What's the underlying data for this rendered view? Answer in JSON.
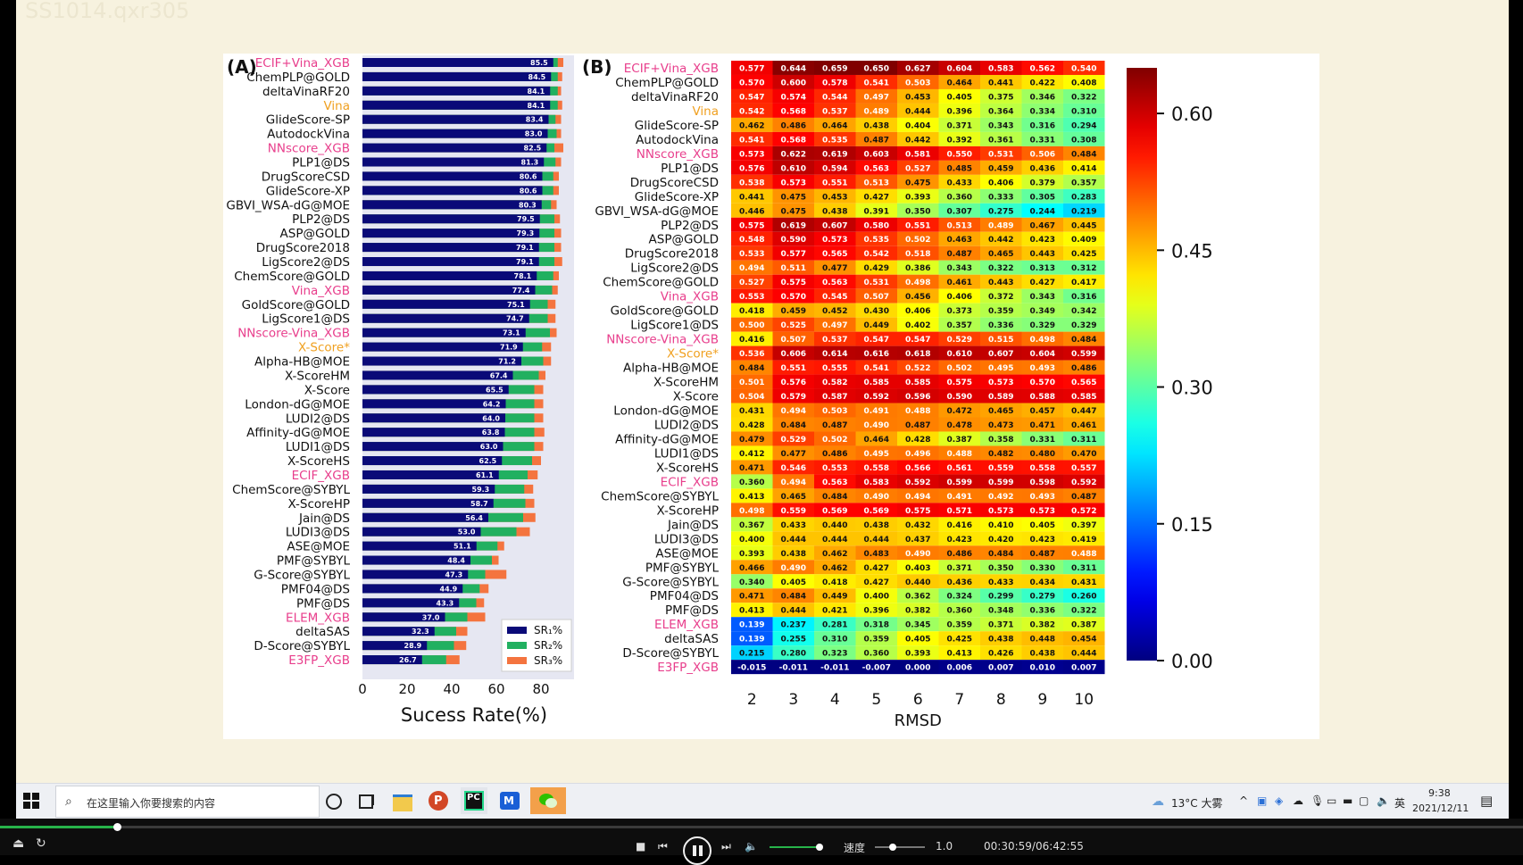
{
  "watermark": "SS1014.qxr305",
  "colors": {
    "bar_sr1": "#0a0a78",
    "bar_sr2": "#21b060",
    "bar_sr3": "#f4743f",
    "label_black": "#111111",
    "label_pink": "#e83e8c",
    "label_orange": "#f0a020",
    "panel_bg": "#e6e7f2"
  },
  "chart_data": [
    {
      "type": "bar",
      "panel_label": "(A)",
      "xlabel": "Sucess Rate(%)",
      "xlim": [
        0,
        95
      ],
      "xticks": [
        0,
        20,
        40,
        60,
        80
      ],
      "legend": [
        "SR₁%",
        "SR₂%",
        "SR₃%"
      ],
      "legend_position": "bottom-right",
      "categories": [
        "ECIF+Vina_XGB",
        "ChemPLP@GOLD",
        "deltaVinaRF20",
        "Vina",
        "GlideScore-SP",
        "AutodockVina",
        "NNscore_XGB",
        "PLP1@DS",
        "DrugScoreCSD",
        "GlideScore-XP",
        "GBVI_WSA-dG@MOE",
        "PLP2@DS",
        "ASP@GOLD",
        "DrugScore2018",
        "LigScore2@DS",
        "ChemScore@GOLD",
        "Vina_XGB",
        "GoldScore@GOLD",
        "LigScore1@DS",
        "NNscore-Vina_XGB",
        "X-Score*",
        "Alpha-HB@MOE",
        "X-ScoreHM",
        "X-Score",
        "London-dG@MOE",
        "LUDI2@DS",
        "Affinity-dG@MOE",
        "LUDI1@DS",
        "X-ScoreHS",
        "ECIF_XGB",
        "ChemScore@SYBYL",
        "X-ScoreHP",
        "Jain@DS",
        "LUDI3@DS",
        "ASE@MOE",
        "PMF@SYBYL",
        "G-Score@SYBYL",
        "PMF04@DS",
        "PMF@DS",
        "ELEM_XGB",
        "deltaSAS",
        "D-Score@SYBYL",
        "E3FP_XGB"
      ],
      "label_colors": [
        "pink",
        "black",
        "black",
        "orange",
        "black",
        "black",
        "pink",
        "black",
        "black",
        "black",
        "black",
        "black",
        "black",
        "black",
        "black",
        "black",
        "pink",
        "black",
        "black",
        "pink",
        "orange",
        "black",
        "black",
        "black",
        "black",
        "black",
        "black",
        "black",
        "black",
        "pink",
        "black",
        "black",
        "black",
        "black",
        "black",
        "black",
        "black",
        "black",
        "black",
        "pink",
        "black",
        "black",
        "pink"
      ],
      "series": [
        {
          "name": "SR₁%",
          "values": [
            85.5,
            84.5,
            84.1,
            84.1,
            83.4,
            83.0,
            82.5,
            81.3,
            80.6,
            80.6,
            80.3,
            79.5,
            79.3,
            79.1,
            79.1,
            78.1,
            77.4,
            75.1,
            74.7,
            73.1,
            71.9,
            71.2,
            67.4,
            65.5,
            64.2,
            64.0,
            63.8,
            63.0,
            62.5,
            61.1,
            59.3,
            58.7,
            56.4,
            53.0,
            51.1,
            48.4,
            47.3,
            44.9,
            43.3,
            37.0,
            32.3,
            28.9,
            26.7
          ]
        },
        {
          "name": "SR₂%",
          "values": [
            87.5,
            87.5,
            87.5,
            87.5,
            86.5,
            87.0,
            86.0,
            86.5,
            85.5,
            85.5,
            84.5,
            86.0,
            86.0,
            86.0,
            86.0,
            85.5,
            85.0,
            83.0,
            83.0,
            84.0,
            80.5,
            81.0,
            79.0,
            77.0,
            77.0,
            77.0,
            77.0,
            77.0,
            76.0,
            74.0,
            72.5,
            73.0,
            72.0,
            69.0,
            60.5,
            58.0,
            55.0,
            52.5,
            51.0,
            47.0,
            42.0,
            41.0,
            37.5
          ]
        },
        {
          "name": "SR₃%",
          "values": [
            90.0,
            89.5,
            89.0,
            89.5,
            89.0,
            89.0,
            90.0,
            89.0,
            88.0,
            88.0,
            87.0,
            88.5,
            89.0,
            89.0,
            89.5,
            88.0,
            87.5,
            86.5,
            86.5,
            87.0,
            84.5,
            84.5,
            82.0,
            81.0,
            81.0,
            81.0,
            81.5,
            81.0,
            80.0,
            78.5,
            76.5,
            77.0,
            77.5,
            75.0,
            63.5,
            61.0,
            64.5,
            56.5,
            54.5,
            55.0,
            47.0,
            46.5,
            43.5
          ]
        }
      ]
    },
    {
      "type": "heatmap",
      "panel_label": "(B)",
      "xlabel": "RMSD",
      "x": [
        2,
        3,
        4,
        5,
        6,
        7,
        8,
        9,
        10
      ],
      "colorbar_range": [
        0.0,
        0.65
      ],
      "colorbar_ticks": [
        "0.00",
        "0.15",
        "0.30",
        "0.45",
        "0.60"
      ],
      "colormap": "jet",
      "rows": [
        {
          "name": "ECIF+Vina_XGB",
          "color": "pink",
          "values": [
            "0.577",
            "0.644",
            "0.659",
            "0.650",
            "0.627",
            "0.604",
            "0.583",
            "0.562",
            "0.540"
          ]
        },
        {
          "name": "ChemPLP@GOLD",
          "color": "black",
          "values": [
            "0.570",
            "0.600",
            "0.578",
            "0.541",
            "0.503",
            "0.464",
            "0.441",
            "0.422",
            "0.408"
          ]
        },
        {
          "name": "deltaVinaRF20",
          "color": "black",
          "values": [
            "0.547",
            "0.574",
            "0.544",
            "0.497",
            "0.453",
            "0.405",
            "0.375",
            "0.346",
            "0.322"
          ]
        },
        {
          "name": "Vina",
          "color": "orange",
          "values": [
            "0.542",
            "0.568",
            "0.537",
            "0.489",
            "0.444",
            "0.396",
            "0.364",
            "0.334",
            "0.310"
          ]
        },
        {
          "name": "GlideScore-SP",
          "color": "black",
          "values": [
            "0.462",
            "0.486",
            "0.464",
            "0.438",
            "0.404",
            "0.371",
            "0.343",
            "0.316",
            "0.294"
          ]
        },
        {
          "name": "AutodockVina",
          "color": "black",
          "values": [
            "0.541",
            "0.568",
            "0.535",
            "0.487",
            "0.442",
            "0.392",
            "0.361",
            "0.331",
            "0.308"
          ]
        },
        {
          "name": "NNscore_XGB",
          "color": "pink",
          "values": [
            "0.573",
            "0.622",
            "0.619",
            "0.603",
            "0.581",
            "0.550",
            "0.531",
            "0.506",
            "0.484"
          ]
        },
        {
          "name": "PLP1@DS",
          "color": "black",
          "values": [
            "0.576",
            "0.610",
            "0.594",
            "0.563",
            "0.527",
            "0.485",
            "0.459",
            "0.436",
            "0.414"
          ]
        },
        {
          "name": "DrugScoreCSD",
          "color": "black",
          "values": [
            "0.538",
            "0.573",
            "0.551",
            "0.513",
            "0.475",
            "0.433",
            "0.406",
            "0.379",
            "0.357"
          ]
        },
        {
          "name": "GlideScore-XP",
          "color": "black",
          "values": [
            "0.441",
            "0.475",
            "0.453",
            "0.427",
            "0.393",
            "0.360",
            "0.333",
            "0.305",
            "0.283"
          ]
        },
        {
          "name": "GBVI_WSA-dG@MOE",
          "color": "black",
          "values": [
            "0.446",
            "0.475",
            "0.438",
            "0.391",
            "0.350",
            "0.307",
            "0.275",
            "0.244",
            "0.219"
          ]
        },
        {
          "name": "PLP2@DS",
          "color": "black",
          "values": [
            "0.575",
            "0.619",
            "0.607",
            "0.580",
            "0.551",
            "0.513",
            "0.489",
            "0.467",
            "0.445"
          ]
        },
        {
          "name": "ASP@GOLD",
          "color": "black",
          "values": [
            "0.548",
            "0.590",
            "0.573",
            "0.535",
            "0.502",
            "0.463",
            "0.442",
            "0.423",
            "0.409"
          ]
        },
        {
          "name": "DrugScore2018",
          "color": "black",
          "values": [
            "0.533",
            "0.577",
            "0.565",
            "0.542",
            "0.518",
            "0.487",
            "0.465",
            "0.443",
            "0.425"
          ]
        },
        {
          "name": "LigScore2@DS",
          "color": "black",
          "values": [
            "0.494",
            "0.511",
            "0.477",
            "0.429",
            "0.386",
            "0.343",
            "0.322",
            "0.313",
            "0.312"
          ]
        },
        {
          "name": "ChemScore@GOLD",
          "color": "black",
          "values": [
            "0.527",
            "0.575",
            "0.563",
            "0.531",
            "0.498",
            "0.461",
            "0.443",
            "0.427",
            "0.417"
          ]
        },
        {
          "name": "Vina_XGB",
          "color": "pink",
          "values": [
            "0.553",
            "0.570",
            "0.545",
            "0.507",
            "0.456",
            "0.406",
            "0.372",
            "0.343",
            "0.316"
          ]
        },
        {
          "name": "GoldScore@GOLD",
          "color": "black",
          "values": [
            "0.418",
            "0.459",
            "0.452",
            "0.430",
            "0.406",
            "0.373",
            "0.359",
            "0.349",
            "0.342"
          ]
        },
        {
          "name": "LigScore1@DS",
          "color": "black",
          "values": [
            "0.500",
            "0.525",
            "0.497",
            "0.449",
            "0.402",
            "0.357",
            "0.336",
            "0.329",
            "0.329"
          ]
        },
        {
          "name": "NNscore-Vina_XGB",
          "color": "pink",
          "values": [
            "0.416",
            "0.507",
            "0.537",
            "0.547",
            "0.547",
            "0.529",
            "0.515",
            "0.498",
            "0.484"
          ]
        },
        {
          "name": "X-Score*",
          "color": "orange",
          "values": [
            "0.536",
            "0.606",
            "0.614",
            "0.616",
            "0.618",
            "0.610",
            "0.607",
            "0.604",
            "0.599"
          ]
        },
        {
          "name": "Alpha-HB@MOE",
          "color": "black",
          "values": [
            "0.484",
            "0.551",
            "0.555",
            "0.541",
            "0.522",
            "0.502",
            "0.495",
            "0.493",
            "0.486"
          ]
        },
        {
          "name": "X-ScoreHM",
          "color": "black",
          "values": [
            "0.501",
            "0.576",
            "0.582",
            "0.585",
            "0.585",
            "0.575",
            "0.573",
            "0.570",
            "0.565"
          ]
        },
        {
          "name": "X-Score",
          "color": "black",
          "values": [
            "0.504",
            "0.579",
            "0.587",
            "0.592",
            "0.596",
            "0.590",
            "0.589",
            "0.588",
            "0.585"
          ]
        },
        {
          "name": "London-dG@MOE",
          "color": "black",
          "values": [
            "0.431",
            "0.494",
            "0.503",
            "0.491",
            "0.488",
            "0.472",
            "0.465",
            "0.457",
            "0.447"
          ]
        },
        {
          "name": "LUDI2@DS",
          "color": "black",
          "values": [
            "0.428",
            "0.484",
            "0.487",
            "0.490",
            "0.487",
            "0.478",
            "0.473",
            "0.471",
            "0.461"
          ]
        },
        {
          "name": "Affinity-dG@MOE",
          "color": "black",
          "values": [
            "0.479",
            "0.529",
            "0.502",
            "0.464",
            "0.428",
            "0.387",
            "0.358",
            "0.331",
            "0.311"
          ]
        },
        {
          "name": "LUDI1@DS",
          "color": "black",
          "values": [
            "0.412",
            "0.477",
            "0.486",
            "0.495",
            "0.496",
            "0.488",
            "0.482",
            "0.480",
            "0.470"
          ]
        },
        {
          "name": "X-ScoreHS",
          "color": "black",
          "values": [
            "0.471",
            "0.546",
            "0.553",
            "0.558",
            "0.566",
            "0.561",
            "0.559",
            "0.558",
            "0.557"
          ]
        },
        {
          "name": "ECIF_XGB",
          "color": "pink",
          "values": [
            "0.360",
            "0.494",
            "0.563",
            "0.583",
            "0.592",
            "0.599",
            "0.599",
            "0.598",
            "0.592"
          ]
        },
        {
          "name": "ChemScore@SYBYL",
          "color": "black",
          "values": [
            "0.413",
            "0.465",
            "0.484",
            "0.490",
            "0.494",
            "0.491",
            "0.492",
            "0.493",
            "0.487"
          ]
        },
        {
          "name": "X-ScoreHP",
          "color": "black",
          "values": [
            "0.498",
            "0.559",
            "0.569",
            "0.569",
            "0.575",
            "0.571",
            "0.573",
            "0.573",
            "0.572"
          ]
        },
        {
          "name": "Jain@DS",
          "color": "black",
          "values": [
            "0.367",
            "0.433",
            "0.440",
            "0.438",
            "0.432",
            "0.416",
            "0.410",
            "0.405",
            "0.397"
          ]
        },
        {
          "name": "LUDI3@DS",
          "color": "black",
          "values": [
            "0.400",
            "0.444",
            "0.444",
            "0.444",
            "0.437",
            "0.423",
            "0.420",
            "0.423",
            "0.419"
          ]
        },
        {
          "name": "ASE@MOE",
          "color": "black",
          "values": [
            "0.393",
            "0.438",
            "0.462",
            "0.483",
            "0.490",
            "0.486",
            "0.484",
            "0.487",
            "0.488"
          ]
        },
        {
          "name": "PMF@SYBYL",
          "color": "black",
          "values": [
            "0.466",
            "0.490",
            "0.462",
            "0.427",
            "0.403",
            "0.371",
            "0.350",
            "0.330",
            "0.311"
          ]
        },
        {
          "name": "G-Score@SYBYL",
          "color": "black",
          "values": [
            "0.340",
            "0.405",
            "0.418",
            "0.427",
            "0.440",
            "0.436",
            "0.433",
            "0.434",
            "0.431"
          ]
        },
        {
          "name": "PMF04@DS",
          "color": "black",
          "values": [
            "0.471",
            "0.484",
            "0.449",
            "0.400",
            "0.362",
            "0.324",
            "0.299",
            "0.279",
            "0.260"
          ]
        },
        {
          "name": "PMF@DS",
          "color": "black",
          "values": [
            "0.413",
            "0.444",
            "0.421",
            "0.396",
            "0.382",
            "0.360",
            "0.348",
            "0.336",
            "0.322"
          ]
        },
        {
          "name": "ELEM_XGB",
          "color": "pink",
          "values": [
            "0.139",
            "0.237",
            "0.281",
            "0.318",
            "0.345",
            "0.359",
            "0.371",
            "0.382",
            "0.387"
          ]
        },
        {
          "name": "deltaSAS",
          "color": "black",
          "values": [
            "0.139",
            "0.255",
            "0.310",
            "0.359",
            "0.405",
            "0.425",
            "0.438",
            "0.448",
            "0.454"
          ]
        },
        {
          "name": "D-Score@SYBYL",
          "color": "black",
          "values": [
            "0.215",
            "0.280",
            "0.323",
            "0.360",
            "0.393",
            "0.413",
            "0.426",
            "0.438",
            "0.444"
          ]
        },
        {
          "name": "E3FP_XGB",
          "color": "pink",
          "values": [
            "-0.015",
            "-0.011",
            "-0.011",
            "-0.007",
            "0.000",
            "0.006",
            "0.007",
            "0.010",
            "0.007"
          ]
        }
      ]
    }
  ],
  "taskbar": {
    "search_placeholder": "在这里输入你要搜索的内容",
    "weather": "13°C 大雾",
    "ime": "英",
    "time": "9:38",
    "date": "2021/12/11",
    "apps": [
      "cortana-icon",
      "task-view-icon",
      "file-explorer-icon",
      "powerpoint-icon",
      "pycharm-icon",
      "meeting-icon",
      "wechat-icon"
    ]
  },
  "player": {
    "speed_label": "速度",
    "speed_value": "1.0",
    "time_display": "00:30:59/06:42:55",
    "progress": 0.0769
  }
}
